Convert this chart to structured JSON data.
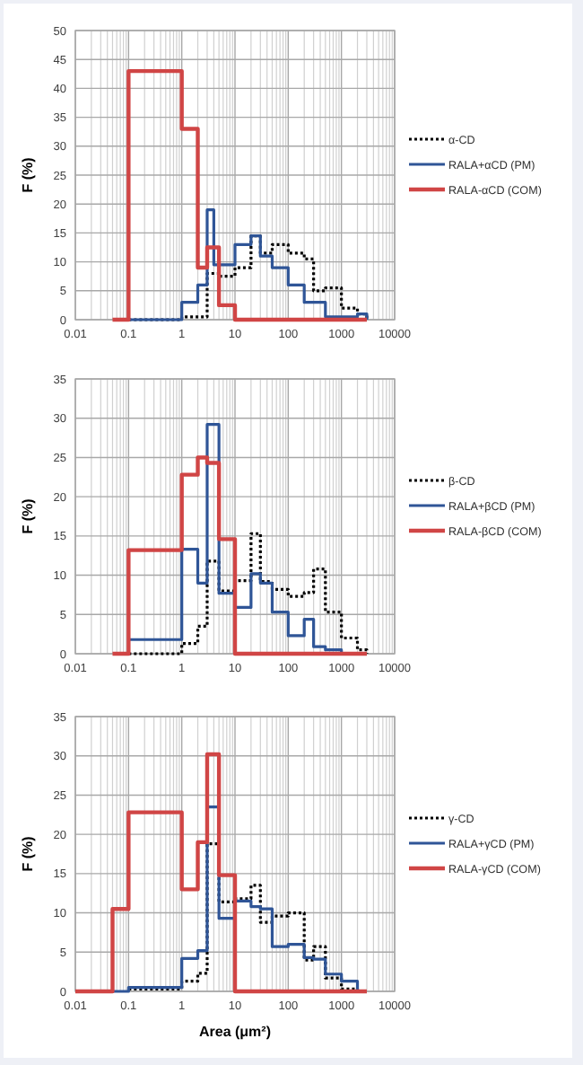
{
  "chart_data": [
    {
      "type": "step",
      "ylabel": "F (%)",
      "xlim": [
        0.01,
        10000
      ],
      "xticks": [
        0.01,
        0.1,
        1,
        10,
        100,
        1000,
        10000
      ],
      "log": "x",
      "ylim": [
        0,
        50
      ],
      "yticks": [
        0,
        5,
        10,
        15,
        20,
        25,
        30,
        35,
        40,
        45,
        50
      ],
      "grid": true,
      "legend": "right",
      "series": [
        {
          "name": "α-CD",
          "color": "#000000",
          "line_style": "dotted",
          "x": [
            0.1,
            1,
            3,
            5,
            10,
            20,
            30,
            50,
            100,
            200,
            300,
            500,
            1000,
            2000,
            3000
          ],
          "values": [
            0,
            0.5,
            8,
            7.5,
            9,
            14.5,
            11.5,
            13,
            11.5,
            10.5,
            5,
            5.5,
            2,
            1,
            0
          ]
        },
        {
          "name": "RALA+αCD (PM)",
          "color": "#2f5597",
          "line_style": "solid",
          "x": [
            0.1,
            1,
            2,
            3,
            4,
            10,
            20,
            30,
            50,
            100,
            200,
            500,
            2000,
            3000
          ],
          "values": [
            0,
            3,
            6,
            19,
            9.5,
            13,
            14.5,
            11,
            9,
            6,
            3,
            0.5,
            1,
            0
          ]
        },
        {
          "name": "RALA-αCD (COM)",
          "color": "#d04545",
          "line_style": "solid",
          "x": [
            0.05,
            0.1,
            1,
            2,
            3,
            5,
            10,
            3000
          ],
          "values": [
            0,
            43,
            33,
            9,
            12.5,
            2.5,
            0,
            0
          ]
        }
      ]
    },
    {
      "type": "step",
      "ylabel": "F (%)",
      "xlim": [
        0.01,
        10000
      ],
      "xticks": [
        0.01,
        0.1,
        1,
        10,
        100,
        1000,
        10000
      ],
      "log": "x",
      "ylim": [
        0,
        35
      ],
      "yticks": [
        0,
        5,
        10,
        15,
        20,
        25,
        30,
        35
      ],
      "grid": true,
      "legend": "right",
      "series": [
        {
          "name": "β-CD",
          "color": "#000000",
          "line_style": "dotted",
          "x": [
            0.1,
            1,
            2,
            3,
            5,
            10,
            20,
            30,
            50,
            100,
            200,
            300,
            500,
            1000,
            2000,
            3000
          ],
          "values": [
            0,
            1.3,
            3.5,
            11.8,
            8,
            9.3,
            15.3,
            9.2,
            8.2,
            7.3,
            7.8,
            10.8,
            5.3,
            2,
            0.5,
            0
          ]
        },
        {
          "name": "RALA+βCD (PM)",
          "color": "#2f5597",
          "line_style": "solid",
          "x": [
            0.1,
            1,
            2,
            3,
            5,
            10,
            20,
            30,
            50,
            100,
            200,
            300,
            500,
            1000
          ],
          "values": [
            1.8,
            13.3,
            9,
            29.2,
            7.7,
            5.9,
            10.2,
            9,
            5.3,
            2.3,
            4.4,
            0.9,
            0.5,
            0
          ]
        },
        {
          "name": "RALA-βCD (COM)",
          "color": "#d04545",
          "line_style": "solid",
          "x": [
            0.05,
            0.1,
            1,
            2,
            3,
            5,
            10,
            3000
          ],
          "values": [
            0,
            13.2,
            22.8,
            25,
            24.3,
            14.6,
            0,
            0
          ]
        }
      ]
    },
    {
      "type": "step",
      "ylabel": "F (%)",
      "xlabel": "Area (μm²)",
      "xlim": [
        0.01,
        10000
      ],
      "xticks": [
        0.01,
        0.1,
        1,
        10,
        100,
        1000,
        10000
      ],
      "log": "x",
      "ylim": [
        0,
        35
      ],
      "yticks": [
        0,
        5,
        10,
        15,
        20,
        25,
        30,
        35
      ],
      "grid": true,
      "legend": "right",
      "series": [
        {
          "name": "γ-CD",
          "color": "#000000",
          "line_style": "dotted",
          "x": [
            0.1,
            1,
            2,
            3,
            5,
            10,
            20,
            30,
            50,
            100,
            200,
            300,
            500,
            1000,
            2000
          ],
          "values": [
            0.3,
            1.3,
            2.3,
            18.8,
            11.4,
            11.8,
            13.5,
            8.8,
            9.6,
            10,
            4,
            5.7,
            1.7,
            0.3,
            0
          ]
        },
        {
          "name": "RALA+γCD (PM)",
          "color": "#2f5597",
          "line_style": "solid",
          "x": [
            0.05,
            0.1,
            1,
            2,
            3,
            5,
            10,
            20,
            30,
            50,
            100,
            200,
            300,
            500,
            1000,
            2000
          ],
          "values": [
            0,
            0.5,
            4.2,
            5.2,
            23.5,
            9.3,
            11.5,
            10.8,
            10.5,
            5.7,
            6,
            4.3,
            4.1,
            2.2,
            1.3,
            0
          ]
        },
        {
          "name": "RALA-γCD (COM)",
          "color": "#d04545",
          "line_style": "solid",
          "x": [
            0.01,
            0.05,
            0.1,
            1,
            2,
            3,
            5,
            10,
            3000
          ],
          "values": [
            0,
            10.5,
            22.8,
            13,
            19,
            30.2,
            14.8,
            0,
            0
          ]
        }
      ]
    }
  ]
}
